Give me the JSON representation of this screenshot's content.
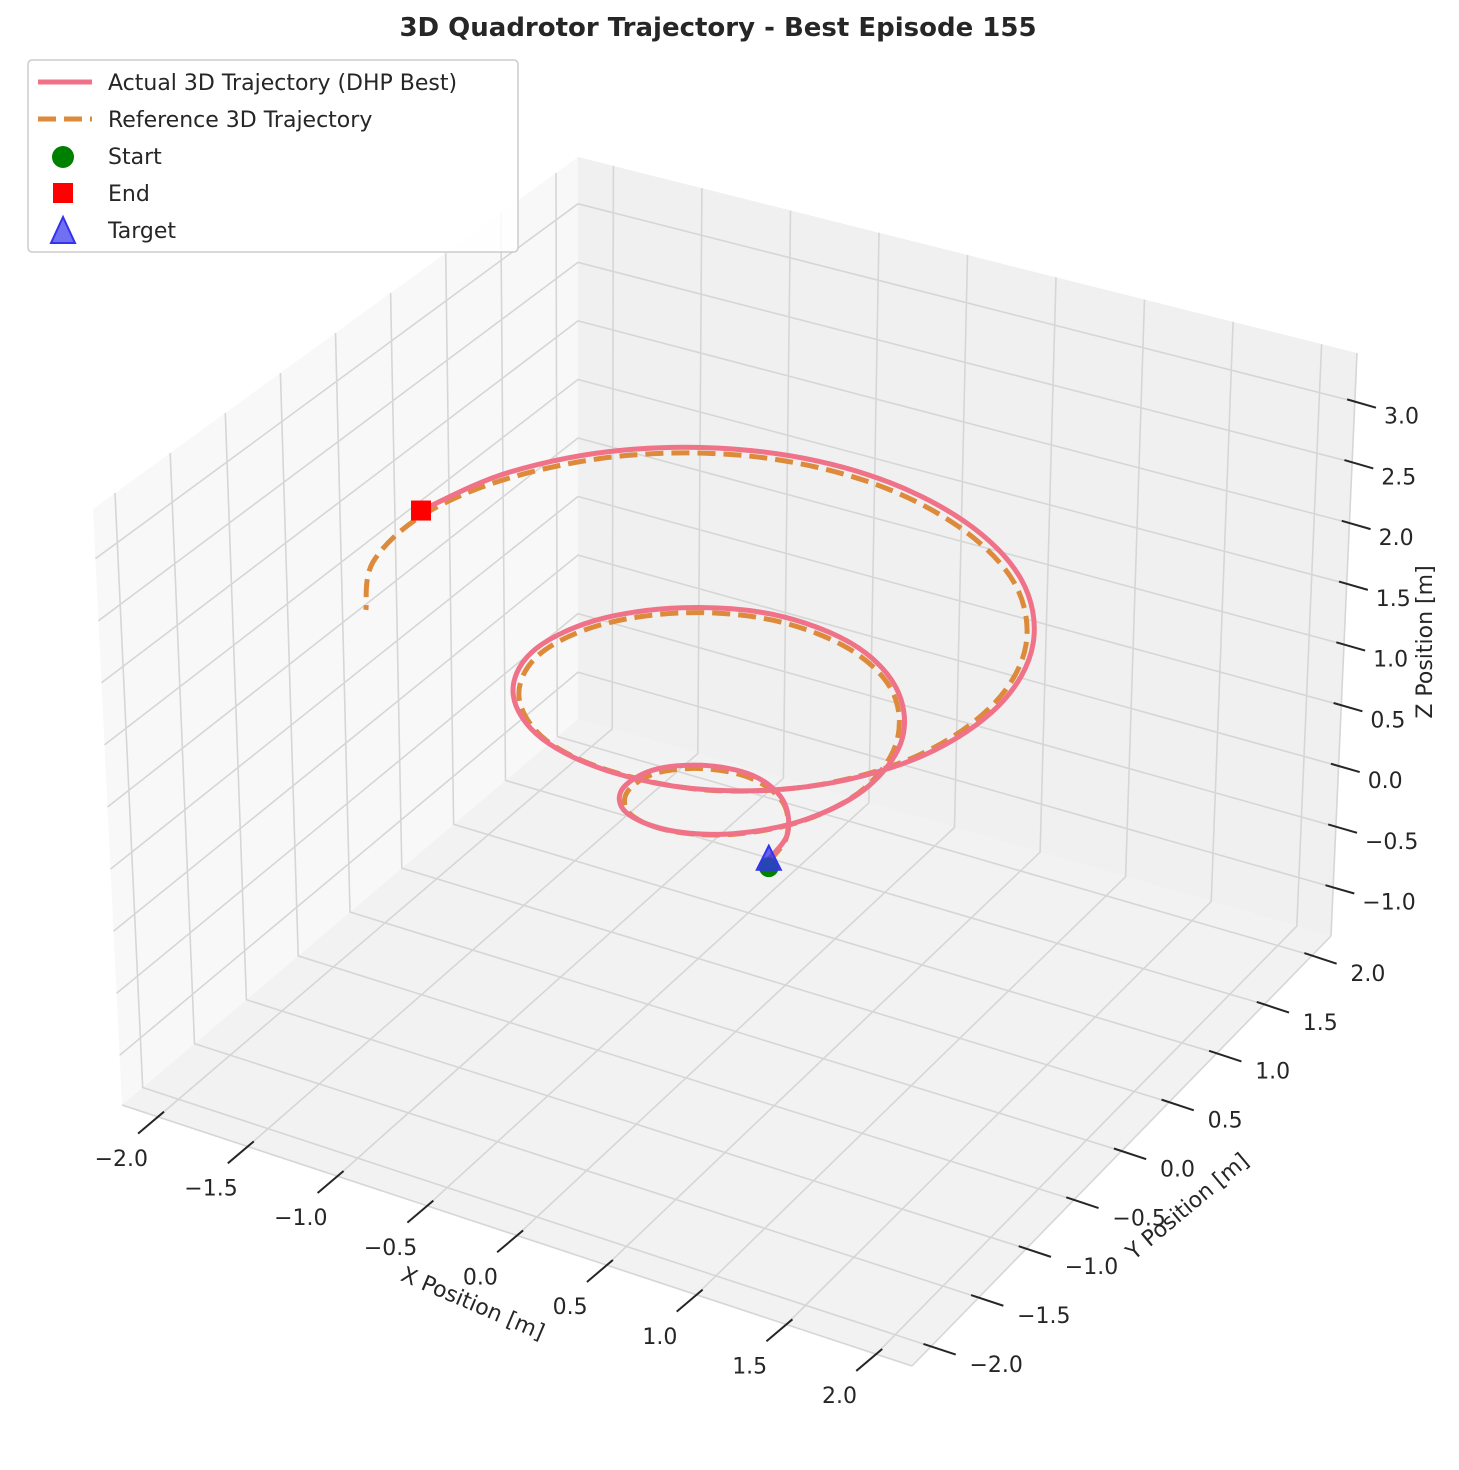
{
  "chart_data": {
    "type": "line",
    "projection": "3d",
    "title": "3D Quadrotor Trajectory - Best Episode 155",
    "xlabel": "X Position [m]",
    "ylabel": "Y Position [m]",
    "zlabel": "Z Position [m]",
    "xlim": [
      -2.2,
      2.2
    ],
    "ylim": [
      -2.2,
      2.2
    ],
    "zlim": [
      -1.4,
      3.4
    ],
    "xticks": [
      -2.0,
      -1.5,
      -1.0,
      -0.5,
      0.0,
      0.5,
      1.0,
      1.5,
      2.0
    ],
    "yticks": [
      -2.0,
      -1.5,
      -1.0,
      -0.5,
      0.0,
      0.5,
      1.0,
      1.5,
      2.0
    ],
    "zticks": [
      -1.0,
      -0.5,
      0.0,
      0.5,
      1.0,
      1.5,
      2.0,
      2.5,
      3.0
    ],
    "xtick_labels": [
      "−2.0",
      "−1.5",
      "−1.0",
      "−0.5",
      "0.0",
      "0.5",
      "1.0",
      "1.5",
      "2.0"
    ],
    "ytick_labels": [
      "−2.0",
      "−1.5",
      "−1.0",
      "−0.5",
      "0.0",
      "0.5",
      "1.0",
      "1.5",
      "2.0"
    ],
    "ztick_labels": [
      "−1.0",
      "−0.5",
      "0.0",
      "0.5",
      "1.0",
      "1.5",
      "2.0",
      "2.5",
      "3.0"
    ],
    "grid": true,
    "legend_position": "top-left",
    "series": [
      {
        "name": "Actual 3D Trajectory (DHP Best)",
        "color": "#f07288",
        "style": "solid",
        "points": [
          [
            0.18,
            0.0,
            0.02
          ],
          [
            0.19,
            0.17,
            0.11
          ],
          [
            0.07,
            0.33,
            0.22
          ],
          [
            -0.13,
            0.38,
            0.3
          ],
          [
            -0.35,
            0.27,
            0.37
          ],
          [
            -0.49,
            0.03,
            0.44
          ],
          [
            -0.49,
            -0.27,
            0.49
          ],
          [
            -0.32,
            -0.53,
            0.55
          ],
          [
            -0.01,
            -0.67,
            0.62
          ],
          [
            0.33,
            -0.63,
            0.69
          ],
          [
            0.62,
            -0.42,
            0.77
          ],
          [
            0.77,
            -0.07,
            0.85
          ],
          [
            0.73,
            0.34,
            0.94
          ],
          [
            0.49,
            0.7,
            1.02
          ],
          [
            0.12,
            0.91,
            1.09
          ],
          [
            -0.33,
            0.93,
            1.14
          ],
          [
            -0.73,
            0.73,
            1.18
          ],
          [
            -1.0,
            0.35,
            1.23
          ],
          [
            -1.07,
            -0.13,
            1.27
          ],
          [
            -0.9,
            -0.6,
            1.3
          ],
          [
            -0.53,
            -0.97,
            1.33
          ],
          [
            -0.03,
            -1.17,
            1.37
          ],
          [
            0.5,
            -1.16,
            1.41
          ],
          [
            0.97,
            -0.92,
            1.46
          ],
          [
            1.3,
            -0.49,
            1.53
          ],
          [
            1.42,
            0.05,
            1.62
          ],
          [
            1.31,
            0.59,
            1.72
          ],
          [
            0.98,
            1.06,
            1.82
          ],
          [
            0.48,
            1.37,
            1.91
          ],
          [
            -0.11,
            1.47,
            2.0
          ],
          [
            -0.7,
            1.34,
            2.07
          ],
          [
            -1.2,
            0.98,
            2.13
          ],
          [
            -1.53,
            0.45,
            2.18
          ],
          [
            -1.66,
            -0.15,
            2.22
          ]
        ]
      },
      {
        "name": "Reference 3D Trajectory",
        "color": "#dd8a3b",
        "style": "dashed",
        "points": [
          [
            0.18,
            0.0,
            0.0
          ],
          [
            0.19,
            0.16,
            0.09
          ],
          [
            0.08,
            0.32,
            0.2
          ],
          [
            -0.12,
            0.37,
            0.28
          ],
          [
            -0.33,
            0.27,
            0.35
          ],
          [
            -0.47,
            0.04,
            0.42
          ],
          [
            -0.47,
            -0.25,
            0.47
          ],
          [
            -0.31,
            -0.51,
            0.53
          ],
          [
            -0.02,
            -0.65,
            0.6
          ],
          [
            0.31,
            -0.62,
            0.67
          ],
          [
            0.6,
            -0.42,
            0.75
          ],
          [
            0.75,
            -0.08,
            0.83
          ],
          [
            0.71,
            0.32,
            0.92
          ],
          [
            0.48,
            0.68,
            1.0
          ],
          [
            0.12,
            0.88,
            1.07
          ],
          [
            -0.32,
            0.9,
            1.12
          ],
          [
            -0.71,
            0.71,
            1.16
          ],
          [
            -0.97,
            0.34,
            1.21
          ],
          [
            -1.04,
            -0.12,
            1.25
          ],
          [
            -0.88,
            -0.58,
            1.28
          ],
          [
            -0.52,
            -0.95,
            1.31
          ],
          [
            -0.04,
            -1.14,
            1.35
          ],
          [
            0.48,
            -1.14,
            1.39
          ],
          [
            0.94,
            -0.91,
            1.44
          ],
          [
            1.26,
            -0.49,
            1.51
          ],
          [
            1.38,
            0.04,
            1.6
          ],
          [
            1.28,
            0.57,
            1.7
          ],
          [
            0.96,
            1.03,
            1.8
          ],
          [
            0.47,
            1.33,
            1.89
          ],
          [
            -0.1,
            1.43,
            1.98
          ],
          [
            -0.68,
            1.31,
            2.05
          ],
          [
            -1.17,
            0.96,
            2.11
          ],
          [
            -1.5,
            0.44,
            2.16
          ],
          [
            -1.64,
            -0.15,
            2.2
          ],
          [
            -1.57,
            -0.75,
            2.23
          ],
          [
            -1.32,
            -1.25,
            2.25
          ]
        ]
      }
    ],
    "markers": [
      {
        "name": "Start",
        "shape": "circle",
        "color": "#008000",
        "point": [
          0.18,
          0.0,
          0.02
        ]
      },
      {
        "name": "End",
        "shape": "square",
        "color": "#ff0000",
        "point": [
          -1.66,
          -0.15,
          2.22
        ]
      },
      {
        "name": "Target",
        "shape": "triangle",
        "color": "#3333ee",
        "point": [
          0.18,
          0.0,
          0.0
        ]
      }
    ]
  }
}
